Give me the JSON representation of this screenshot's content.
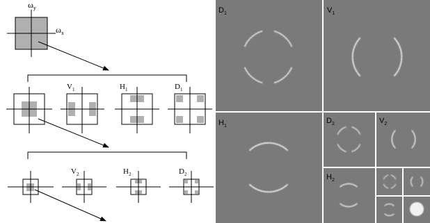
{
  "diagram": {
    "axis_y": "ω",
    "axis_y_sub": "y",
    "axis_x": "ω",
    "axis_x_sub": "x",
    "level1": [
      {
        "letter": "V",
        "sub": "1"
      },
      {
        "letter": "H",
        "sub": "1"
      },
      {
        "letter": "D",
        "sub": "1"
      }
    ],
    "level2": [
      {
        "letter": "V",
        "sub": "2"
      },
      {
        "letter": "H",
        "sub": "2"
      },
      {
        "letter": "D",
        "sub": "2"
      }
    ]
  },
  "panels": [
    {
      "letter": "D",
      "sub": "1"
    },
    {
      "letter": "V",
      "sub": "1"
    },
    {
      "letter": "H",
      "sub": "1"
    },
    {
      "letter": "D",
      "sub": "2"
    },
    {
      "letter": "V",
      "sub": "2"
    },
    {
      "letter": "H",
      "sub": "2"
    }
  ],
  "colors": {
    "panel_bg": "#7a7a7a",
    "tile_fill": "#b0b0b0",
    "ring": "#f2f2f2",
    "separator": "#ffffff"
  }
}
